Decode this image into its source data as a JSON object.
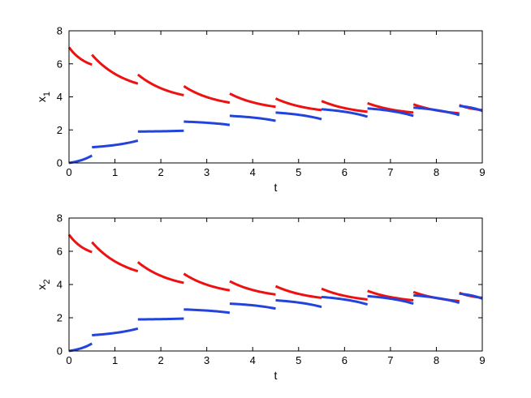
{
  "colors": {
    "red": "#ee1111",
    "blue": "#2244dd"
  },
  "chart_data": [
    {
      "type": "line",
      "title": "",
      "xlabel": "t",
      "ylabel": "x",
      "ylabel_sub": "1",
      "xlim": [
        0,
        9
      ],
      "ylim": [
        0,
        8
      ],
      "xticks": [
        0,
        1,
        2,
        3,
        4,
        5,
        6,
        7,
        8,
        9
      ],
      "yticks": [
        0,
        2,
        4,
        6,
        8
      ],
      "grid": false,
      "series": [
        {
          "color": "red",
          "segments": [
            {
              "x": [
                0,
                0.5
              ],
              "y": [
                7.0,
                5.95
              ]
            },
            {
              "x": [
                0.5,
                1.5
              ],
              "y": [
                6.55,
                4.8
              ]
            },
            {
              "x": [
                1.5,
                2.5
              ],
              "y": [
                5.35,
                4.1
              ]
            },
            {
              "x": [
                2.5,
                3.5
              ],
              "y": [
                4.65,
                3.65
              ]
            },
            {
              "x": [
                3.5,
                4.5
              ],
              "y": [
                4.2,
                3.4
              ]
            },
            {
              "x": [
                4.5,
                5.5
              ],
              "y": [
                3.9,
                3.2
              ]
            },
            {
              "x": [
                5.5,
                6.5
              ],
              "y": [
                3.75,
                3.1
              ]
            },
            {
              "x": [
                6.5,
                7.5
              ],
              "y": [
                3.62,
                3.05
              ]
            },
            {
              "x": [
                7.5,
                8.5
              ],
              "y": [
                3.55,
                3.0
              ]
            },
            {
              "x": [
                8.5,
                9
              ],
              "y": [
                3.5,
                3.2
              ]
            }
          ]
        },
        {
          "color": "blue",
          "segments": [
            {
              "x": [
                0,
                0.5
              ],
              "y": [
                0.0,
                0.45
              ]
            },
            {
              "x": [
                0.5,
                1.5
              ],
              "y": [
                0.95,
                1.35
              ]
            },
            {
              "x": [
                1.5,
                2.5
              ],
              "y": [
                1.9,
                1.95
              ]
            },
            {
              "x": [
                2.5,
                3.5
              ],
              "y": [
                2.5,
                2.3
              ]
            },
            {
              "x": [
                3.5,
                4.5
              ],
              "y": [
                2.85,
                2.55
              ]
            },
            {
              "x": [
                4.5,
                5.5
              ],
              "y": [
                3.05,
                2.65
              ]
            },
            {
              "x": [
                5.5,
                6.5
              ],
              "y": [
                3.25,
                2.8
              ]
            },
            {
              "x": [
                6.5,
                7.5
              ],
              "y": [
                3.3,
                2.85
              ]
            },
            {
              "x": [
                7.5,
                8.5
              ],
              "y": [
                3.35,
                2.9
              ]
            },
            {
              "x": [
                8.5,
                9
              ],
              "y": [
                3.45,
                3.15
              ]
            }
          ]
        }
      ]
    },
    {
      "type": "line",
      "title": "",
      "xlabel": "t",
      "ylabel": "x",
      "ylabel_sub": "2",
      "xlim": [
        0,
        9
      ],
      "ylim": [
        0,
        8
      ],
      "xticks": [
        0,
        1,
        2,
        3,
        4,
        5,
        6,
        7,
        8,
        9
      ],
      "yticks": [
        0,
        2,
        4,
        6,
        8
      ],
      "grid": false,
      "series": [
        {
          "color": "red",
          "segments": [
            {
              "x": [
                0,
                0.5
              ],
              "y": [
                7.0,
                5.95
              ]
            },
            {
              "x": [
                0.5,
                1.5
              ],
              "y": [
                6.55,
                4.8
              ]
            },
            {
              "x": [
                1.5,
                2.5
              ],
              "y": [
                5.35,
                4.1
              ]
            },
            {
              "x": [
                2.5,
                3.5
              ],
              "y": [
                4.65,
                3.65
              ]
            },
            {
              "x": [
                3.5,
                4.5
              ],
              "y": [
                4.2,
                3.4
              ]
            },
            {
              "x": [
                4.5,
                5.5
              ],
              "y": [
                3.9,
                3.2
              ]
            },
            {
              "x": [
                5.5,
                6.5
              ],
              "y": [
                3.75,
                3.1
              ]
            },
            {
              "x": [
                6.5,
                7.5
              ],
              "y": [
                3.62,
                3.05
              ]
            },
            {
              "x": [
                7.5,
                8.5
              ],
              "y": [
                3.55,
                3.0
              ]
            },
            {
              "x": [
                8.5,
                9
              ],
              "y": [
                3.5,
                3.2
              ]
            }
          ]
        },
        {
          "color": "blue",
          "segments": [
            {
              "x": [
                0,
                0.5
              ],
              "y": [
                0.0,
                0.45
              ]
            },
            {
              "x": [
                0.5,
                1.5
              ],
              "y": [
                0.95,
                1.35
              ]
            },
            {
              "x": [
                1.5,
                2.5
              ],
              "y": [
                1.9,
                1.95
              ]
            },
            {
              "x": [
                2.5,
                3.5
              ],
              "y": [
                2.5,
                2.3
              ]
            },
            {
              "x": [
                3.5,
                4.5
              ],
              "y": [
                2.85,
                2.55
              ]
            },
            {
              "x": [
                4.5,
                5.5
              ],
              "y": [
                3.05,
                2.65
              ]
            },
            {
              "x": [
                5.5,
                6.5
              ],
              "y": [
                3.25,
                2.8
              ]
            },
            {
              "x": [
                6.5,
                7.5
              ],
              "y": [
                3.3,
                2.85
              ]
            },
            {
              "x": [
                7.5,
                8.5
              ],
              "y": [
                3.35,
                2.9
              ]
            },
            {
              "x": [
                8.5,
                9
              ],
              "y": [
                3.45,
                3.15
              ]
            }
          ]
        }
      ]
    }
  ]
}
